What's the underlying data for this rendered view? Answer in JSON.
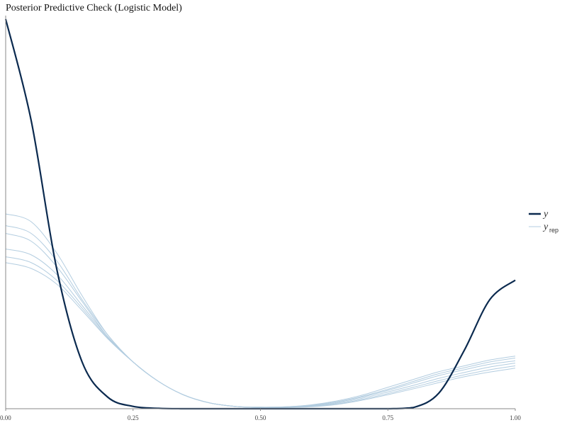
{
  "chart_data": {
    "type": "line",
    "title": "Posterior Predictive Check (Logistic Model)",
    "xlabel": "",
    "ylabel": "",
    "xlim": [
      0,
      1
    ],
    "ylim": [
      0,
      1
    ],
    "x_ticks": [
      "0.00",
      "0.25",
      "0.50",
      "0.75",
      "1.00"
    ],
    "grid": false,
    "legend_position": "right",
    "legend": [
      {
        "label": "y",
        "sub": "",
        "color": "#0b2a4f",
        "weight": "thick"
      },
      {
        "label": "y",
        "sub": "rep",
        "color": "#b3cde0",
        "weight": "thin"
      }
    ],
    "colors": {
      "y": "#0b2a4f",
      "y_rep": "#b3cde0"
    },
    "x": [
      0,
      0.05,
      0.1,
      0.15,
      0.2,
      0.25,
      0.3,
      0.35,
      0.4,
      0.45,
      0.5,
      0.55,
      0.6,
      0.65,
      0.7,
      0.75,
      0.8,
      0.85,
      0.9,
      0.95,
      1.0
    ],
    "series": [
      {
        "role": "y",
        "values": [
          1.0,
          0.74,
          0.36,
          0.12,
          0.03,
          0.006,
          0.001,
          0.0,
          0.0,
          0.0,
          0.0,
          0.0,
          0.0,
          0.0,
          0.0,
          0.0,
          0.003,
          0.04,
          0.15,
          0.28,
          0.33
        ]
      },
      {
        "role": "y_rep",
        "values": [
          0.5,
          0.48,
          0.4,
          0.29,
          0.19,
          0.12,
          0.07,
          0.035,
          0.015,
          0.006,
          0.004,
          0.005,
          0.01,
          0.02,
          0.035,
          0.055,
          0.075,
          0.095,
          0.11,
          0.125,
          0.135
        ]
      },
      {
        "role": "y_rep",
        "values": [
          0.47,
          0.45,
          0.38,
          0.28,
          0.19,
          0.12,
          0.07,
          0.035,
          0.015,
          0.006,
          0.004,
          0.005,
          0.009,
          0.018,
          0.032,
          0.05,
          0.07,
          0.09,
          0.105,
          0.12,
          0.13
        ]
      },
      {
        "role": "y_rep",
        "values": [
          0.45,
          0.43,
          0.365,
          0.275,
          0.185,
          0.12,
          0.07,
          0.035,
          0.015,
          0.006,
          0.003,
          0.004,
          0.008,
          0.016,
          0.03,
          0.047,
          0.066,
          0.085,
          0.1,
          0.114,
          0.123
        ]
      },
      {
        "role": "y_rep",
        "values": [
          0.41,
          0.395,
          0.345,
          0.265,
          0.185,
          0.12,
          0.07,
          0.035,
          0.015,
          0.006,
          0.003,
          0.004,
          0.007,
          0.014,
          0.027,
          0.043,
          0.06,
          0.078,
          0.093,
          0.107,
          0.117
        ]
      },
      {
        "role": "y_rep",
        "values": [
          0.39,
          0.375,
          0.33,
          0.258,
          0.182,
          0.12,
          0.07,
          0.035,
          0.015,
          0.006,
          0.003,
          0.003,
          0.006,
          0.012,
          0.024,
          0.039,
          0.055,
          0.072,
          0.087,
          0.1,
          0.11
        ]
      },
      {
        "role": "y_rep",
        "values": [
          0.375,
          0.36,
          0.32,
          0.252,
          0.18,
          0.12,
          0.07,
          0.035,
          0.015,
          0.006,
          0.003,
          0.003,
          0.005,
          0.011,
          0.022,
          0.036,
          0.051,
          0.067,
          0.082,
          0.094,
          0.104
        ]
      }
    ]
  }
}
